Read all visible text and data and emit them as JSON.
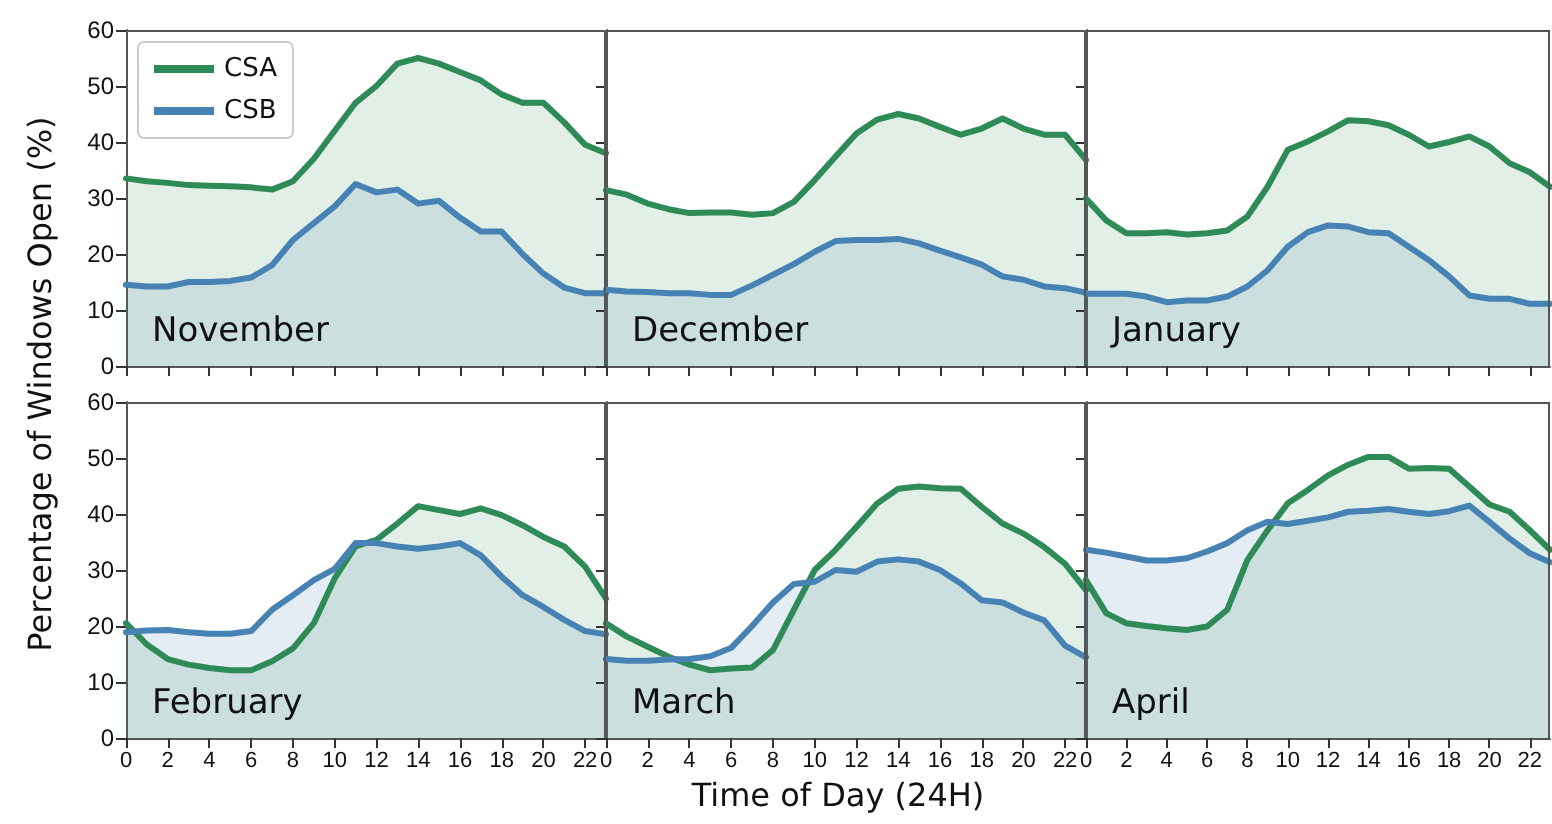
{
  "chart_data": [
    {
      "type": "area",
      "title": "November",
      "ylabel": "Percentage of Windows Open (%)",
      "legend": "top left",
      "grid": false,
      "marker": "none",
      "line_style": "solid",
      "tick_labels": "y",
      "xlim": [
        0,
        23
      ],
      "xticks": [
        0,
        2,
        4,
        6,
        8,
        10,
        12,
        14,
        16,
        18,
        20,
        22
      ],
      "ylim": [
        0,
        60
      ],
      "yticks": [
        0,
        10,
        20,
        30,
        40,
        50,
        60
      ],
      "x": [
        0,
        1,
        2,
        3,
        4,
        5,
        6,
        7,
        8,
        9,
        10,
        11,
        12,
        13,
        14,
        15,
        16,
        17,
        18,
        19,
        20,
        21,
        22,
        23
      ],
      "series": [
        {
          "name": "CSA",
          "color": "#2e8b57",
          "values": [
            33.5,
            33,
            32.7,
            32.3,
            32.2,
            32.1,
            31.9,
            31.5,
            33,
            37,
            42,
            47,
            50,
            54,
            55,
            54,
            52.5,
            51,
            48.5,
            47,
            47,
            43.5,
            39.5,
            38
          ]
        },
        {
          "name": "CSB",
          "color": "#4682b4",
          "values": [
            14.5,
            14.2,
            14.2,
            15,
            15,
            15.2,
            15.8,
            18,
            22.5,
            25.5,
            28.5,
            32.5,
            31,
            31.5,
            29,
            29.5,
            26.5,
            24,
            24,
            20,
            16.5,
            14,
            13,
            13
          ]
        }
      ]
    },
    {
      "type": "area",
      "title": "December",
      "grid": false,
      "marker": "none",
      "line_style": "solid",
      "tick_labels": false,
      "xlim": [
        0,
        23
      ],
      "xticks": [
        0,
        2,
        4,
        6,
        8,
        10,
        12,
        14,
        16,
        18,
        20,
        22
      ],
      "ylim": [
        0,
        60
      ],
      "yticks": [
        0,
        10,
        20,
        30,
        40,
        50,
        60
      ],
      "x": [
        0,
        1,
        2,
        3,
        4,
        5,
        6,
        7,
        8,
        9,
        10,
        11,
        12,
        13,
        14,
        15,
        16,
        17,
        18,
        19,
        20,
        21,
        22,
        23
      ],
      "series": [
        {
          "color": "#2e8b57",
          "values": [
            31.4,
            30.6,
            29,
            28,
            27.3,
            27.4,
            27.4,
            27,
            27.3,
            29.3,
            33.2,
            37.4,
            41.5,
            44,
            45,
            44.2,
            42.7,
            41.3,
            42.4,
            44.2,
            42.4,
            41.3,
            41.3,
            36.8
          ]
        },
        {
          "color": "#4682b4",
          "values": [
            13.6,
            13.3,
            13.2,
            13,
            13,
            12.7,
            12.7,
            14.4,
            16.3,
            18.2,
            20.4,
            22.3,
            22.5,
            22.5,
            22.7,
            21.9,
            20.6,
            19.4,
            18.1,
            16,
            15.4,
            14.2,
            13.9,
            13.1
          ]
        }
      ]
    },
    {
      "type": "area",
      "title": "January",
      "grid": false,
      "marker": "none",
      "line_style": "solid",
      "tick_labels": false,
      "xlim": [
        0,
        23
      ],
      "xticks": [
        0,
        2,
        4,
        6,
        8,
        10,
        12,
        14,
        16,
        18,
        20,
        22
      ],
      "ylim": [
        0,
        60
      ],
      "yticks": [
        0,
        10,
        20,
        30,
        40,
        50,
        60
      ],
      "x": [
        0,
        1,
        2,
        3,
        4,
        5,
        6,
        7,
        8,
        9,
        10,
        11,
        12,
        13,
        14,
        15,
        16,
        17,
        18,
        19,
        20,
        21,
        22,
        23
      ],
      "series": [
        {
          "color": "#2e8b57",
          "values": [
            29.9,
            26,
            23.7,
            23.7,
            23.9,
            23.5,
            23.7,
            24.2,
            26.7,
            32,
            38.6,
            40.1,
            41.9,
            43.9,
            43.7,
            43,
            41.3,
            39.2,
            40,
            41,
            39.2,
            36.2,
            34.6,
            32
          ]
        },
        {
          "color": "#4682b4",
          "values": [
            12.9,
            12.9,
            12.9,
            12.4,
            11.4,
            11.7,
            11.7,
            12.4,
            14.2,
            17.1,
            21.3,
            23.9,
            25.1,
            24.9,
            23.9,
            23.7,
            21.3,
            18.9,
            16,
            12.6,
            12,
            12,
            11.1,
            11.1
          ]
        }
      ]
    },
    {
      "type": "area",
      "title": "February",
      "grid": false,
      "marker": "none",
      "line_style": "solid",
      "xlim": [
        0,
        23
      ],
      "xticks": [
        0,
        2,
        4,
        6,
        8,
        10,
        12,
        14,
        16,
        18,
        20,
        22
      ],
      "ylim": [
        0,
        60
      ],
      "yticks": [
        0,
        10,
        20,
        30,
        40,
        50,
        60
      ],
      "x": [
        0,
        1,
        2,
        3,
        4,
        5,
        6,
        7,
        8,
        9,
        10,
        11,
        12,
        13,
        14,
        15,
        16,
        17,
        18,
        19,
        20,
        21,
        22,
        23
      ],
      "series": [
        {
          "color": "#2e8b57",
          "values": [
            20.5,
            16.7,
            14.1,
            13.1,
            12.5,
            12.1,
            12.1,
            13.7,
            16,
            20.5,
            28.5,
            34.2,
            35.4,
            38.3,
            41.4,
            40.7,
            40,
            41,
            39.8,
            38,
            35.9,
            34.2,
            30.6,
            24.9
          ]
        },
        {
          "color": "#4682b4",
          "values": [
            18.9,
            19.2,
            19.3,
            18.9,
            18.6,
            18.6,
            19.1,
            22.9,
            25.5,
            28.2,
            30.2,
            34.8,
            34.8,
            34.2,
            33.8,
            34.2,
            34.8,
            32.6,
            28.8,
            25.5,
            23.4,
            21.1,
            19.1,
            18.5
          ]
        }
      ]
    },
    {
      "type": "area",
      "title": "March",
      "xlabel": "Time of Day (24H)",
      "grid": false,
      "marker": "none",
      "line_style": "solid",
      "tick_labels": "x",
      "xlim": [
        0,
        23
      ],
      "xticks": [
        0,
        2,
        4,
        6,
        8,
        10,
        12,
        14,
        16,
        18,
        20,
        22
      ],
      "ylim": [
        0,
        60
      ],
      "yticks": [
        0,
        10,
        20,
        30,
        40,
        50,
        60
      ],
      "x": [
        0,
        1,
        2,
        3,
        4,
        5,
        6,
        7,
        8,
        9,
        10,
        11,
        12,
        13,
        14,
        15,
        16,
        17,
        18,
        19,
        20,
        21,
        22,
        23
      ],
      "series": [
        {
          "color": "#2e8b57",
          "values": [
            20.5,
            18.1,
            16.3,
            14.5,
            13.1,
            12.1,
            12.4,
            12.6,
            15.7,
            22.9,
            30,
            33.6,
            37.7,
            41.9,
            44.5,
            44.9,
            44.6,
            44.5,
            41.3,
            38.3,
            36.5,
            34.1,
            31.1,
            26.4
          ]
        },
        {
          "color": "#4682b4",
          "values": [
            14.1,
            13.8,
            13.8,
            14,
            14.1,
            14.6,
            16.1,
            20,
            24.2,
            27.5,
            27.9,
            30,
            29.7,
            31.5,
            31.9,
            31.5,
            30,
            27.6,
            24.6,
            24.2,
            22.4,
            21,
            16.5,
            14.4
          ]
        }
      ]
    },
    {
      "type": "area",
      "title": "April",
      "grid": false,
      "marker": "none",
      "line_style": "solid",
      "tick_labels": "x",
      "xlim": [
        0,
        23
      ],
      "xticks": [
        0,
        2,
        4,
        6,
        8,
        10,
        12,
        14,
        16,
        18,
        20,
        22
      ],
      "ylim": [
        0,
        60
      ],
      "yticks": [
        0,
        10,
        20,
        30,
        40,
        50,
        60
      ],
      "x": [
        0,
        1,
        2,
        3,
        4,
        5,
        6,
        7,
        8,
        9,
        10,
        11,
        12,
        13,
        14,
        15,
        16,
        17,
        18,
        19,
        20,
        21,
        22,
        23
      ],
      "series": [
        {
          "color": "#2e8b57",
          "values": [
            28.2,
            22.3,
            20.5,
            20,
            19.6,
            19.3,
            19.9,
            22.9,
            31.8,
            37.1,
            41.9,
            44.3,
            46.9,
            48.8,
            50.2,
            50.2,
            48.1,
            48.2,
            48.1,
            44.9,
            41.7,
            40.4,
            37.1,
            33.6
          ]
        },
        {
          "color": "#4682b4",
          "values": [
            33.6,
            33.1,
            32.4,
            31.7,
            31.7,
            32.1,
            33.3,
            34.8,
            37.1,
            38.6,
            38.2,
            38.8,
            39.4,
            40.4,
            40.6,
            40.9,
            40.4,
            40,
            40.5,
            41.5,
            38.6,
            35.6,
            33,
            31.4
          ]
        }
      ]
    }
  ]
}
